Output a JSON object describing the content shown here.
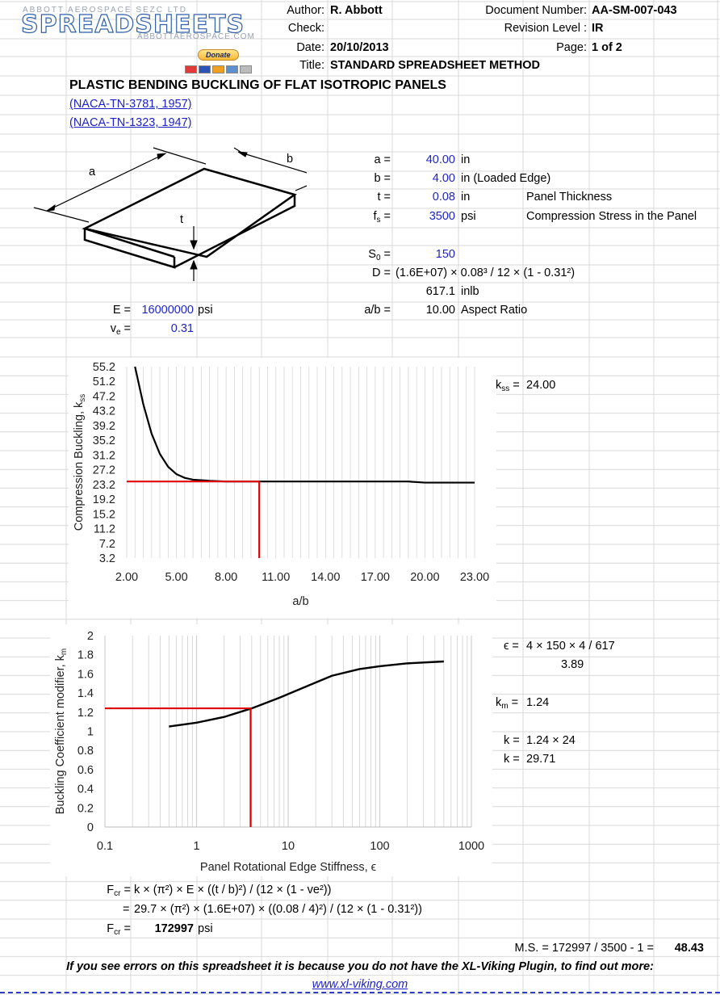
{
  "logo": {
    "top_line": "ABBOTT AEROSPACE SEZC LTD",
    "main": "SPREADSHEETS",
    "url": "ABBOTTAEROSPACE.COM",
    "donate": "Donate"
  },
  "header": {
    "author_label": "Author:",
    "author": "R. Abbott",
    "check_label": "Check:",
    "check": "",
    "date_label": "Date:",
    "date": "20/10/2013",
    "title_label": "Title:",
    "title": "STANDARD SPREADSHEET METHOD",
    "docnum_label": "Document Number:",
    "docnum": "AA-SM-007-043",
    "revision_label": "Revision Level :",
    "revision": "IR",
    "page_label": "Page:",
    "page": "1 of 2"
  },
  "sheet": {
    "heading": "PLASTIC BENDING BUCKLING OF FLAT ISOTROPIC PANELS",
    "ref1": "(NACA-TN-3781, 1957)",
    "ref2": "(NACA-TN-1323, 1947)"
  },
  "sketch": {
    "label_a": "a",
    "label_b": "b",
    "label_t": "t"
  },
  "inputs": {
    "a_label": "a =",
    "a": "40.00",
    "a_unit": "in",
    "b_label": "b =",
    "b": "4.00",
    "b_unit": "in (Loaded Edge)",
    "t_label": "t =",
    "t": "0.08",
    "t_unit": "in",
    "t_desc": "Panel Thickness",
    "fs_label": "f",
    "fs_sub": "s",
    "fs_eq": " =",
    "fs": "3500",
    "fs_unit": "psi",
    "fs_desc": "Compression Stress in the Panel",
    "s0_label": "S",
    "s0_sub": "0",
    "s0_eq": " =",
    "s0": "150",
    "d_label": "D =",
    "d_formula": "(1.6E+07) × 0.08³ / 12 × (1 - 0.31²)",
    "d_value": "617.1",
    "d_unit": "inlb",
    "e_label": "E =",
    "e": "16000000",
    "e_unit": "psi",
    "ab_label": "a/b =",
    "ab": "10.00",
    "ab_desc": "Aspect Ratio",
    "ve_label": "v",
    "ve_sub": "e",
    "ve_eq": " =",
    "ve": "0.31"
  },
  "results": {
    "kss_label": "k",
    "kss_sub": "ss",
    "kss_eq": " =",
    "kss": "24.00",
    "eps_label": "ϵ =",
    "eps_formula": "4 × 150 × 4 / 617",
    "eps_value": "3.89",
    "km_label": "k",
    "km_sub": "m",
    "km_eq": " =",
    "km": "1.24",
    "k_label1": "k =",
    "k_formula": "1.24 × 24",
    "k_label2": "k =",
    "k_value": "29.71",
    "fcr_label": "F",
    "fcr_sub": "cr",
    "fcr_eq": " =",
    "fcr_formula": "k × (π²) × E × ((t / b)²) / (12 × (1 - ve²))",
    "fcr_eq2": "=",
    "fcr_formula2": "29.7 × (π²) × (1.6E+07) × ((0.08 / 4)²) / (12 × (1 - 0.31²))",
    "fcr_value": "172997",
    "fcr_unit": "psi",
    "ms_formula": "M.S. = 172997 / 3500 - 1 =",
    "ms_value": "48.43"
  },
  "footer": {
    "note": "If you see errors on this spreadsheet it is because you do not have the XL-Viking Plugin, to find out more:",
    "link": "www.xl-viking.com"
  },
  "colors": {
    "grid": "#d9d9d9",
    "input_blue": "#1f23c7",
    "red_marker": "#e00000",
    "curve": "#000000"
  },
  "chart_data": [
    {
      "type": "line",
      "title": "",
      "xlabel": "a/b",
      "ylabel": "Compression Buckling, kss",
      "xlim": [
        2.0,
        23.0
      ],
      "ylim": [
        3.2,
        55.2
      ],
      "x_ticks": [
        "2.00",
        "5.00",
        "8.00",
        "11.00",
        "14.00",
        "17.00",
        "20.00",
        "23.00"
      ],
      "y_ticks": [
        "55.2",
        "51.2",
        "47.2",
        "43.2",
        "39.2",
        "35.2",
        "31.2",
        "27.2",
        "23.2",
        "19.2",
        "15.2",
        "11.2",
        "7.2",
        "3.2"
      ],
      "grid": true,
      "series": [
        {
          "x": [
            2.5,
            3.0,
            3.5,
            4.0,
            4.5,
            5.0,
            5.5,
            6.0,
            7.0,
            8.0,
            10.0,
            12.0,
            15.0,
            19.0,
            20.0,
            23.0
          ],
          "y": [
            55.2,
            45.0,
            37.0,
            31.5,
            28.0,
            26.0,
            25.0,
            24.5,
            24.2,
            24.0,
            24.0,
            24.0,
            24.0,
            24.0,
            23.7,
            23.7
          ]
        }
      ],
      "marker": {
        "x": 10.0,
        "y": 24.0
      }
    },
    {
      "type": "line",
      "title": "",
      "xlabel": "Panel Rotational Edge Stiffness, ϵ",
      "ylabel": "Buckling Coefficient modifier, km",
      "xscale": "log",
      "xlim": [
        0.1,
        1000
      ],
      "ylim": [
        0,
        2
      ],
      "x_ticks": [
        "0.1",
        "1",
        "10",
        "100",
        "1000"
      ],
      "y_ticks": [
        "2",
        "1.8",
        "1.6",
        "1.4",
        "1.2",
        "1",
        "0.8",
        "0.6",
        "0.4",
        "0.2",
        "0"
      ],
      "grid": true,
      "series": [
        {
          "x": [
            0.5,
            1,
            2,
            4,
            8,
            15,
            30,
            60,
            100,
            200,
            500
          ],
          "y": [
            1.05,
            1.09,
            1.15,
            1.24,
            1.35,
            1.46,
            1.58,
            1.65,
            1.68,
            1.71,
            1.73
          ]
        }
      ],
      "marker": {
        "x": 3.89,
        "y": 1.24
      }
    }
  ]
}
